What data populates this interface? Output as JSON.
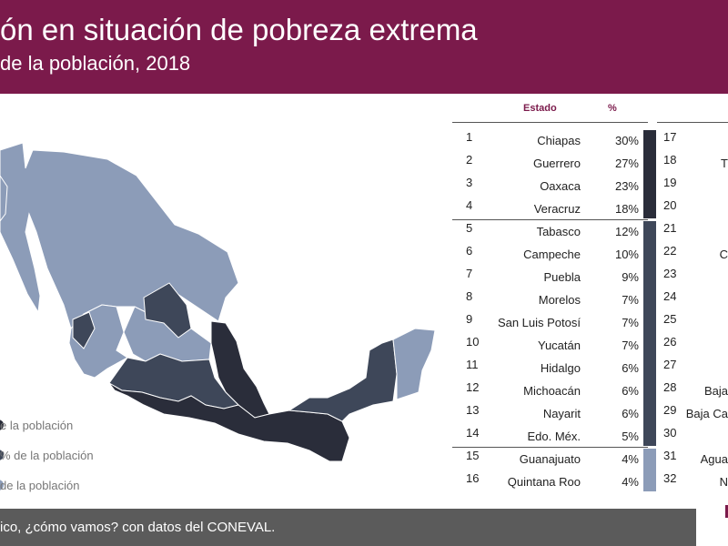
{
  "header": {
    "title": "ón en situación de pobreza extrema",
    "subtitle": "de la población, 2018"
  },
  "table": {
    "col_state": "Estado",
    "col_pct": "%",
    "rows": [
      {
        "rank": "1",
        "state": "Chiapas",
        "pct": "30%",
        "value": 30
      },
      {
        "rank": "2",
        "state": "Guerrero",
        "pct": "27%",
        "value": 27
      },
      {
        "rank": "3",
        "state": "Oaxaca",
        "pct": "23%",
        "value": 23
      },
      {
        "rank": "4",
        "state": "Veracruz",
        "pct": "18%",
        "value": 18
      },
      {
        "rank": "5",
        "state": "Tabasco",
        "pct": "12%",
        "value": 12
      },
      {
        "rank": "6",
        "state": "Campeche",
        "pct": "10%",
        "value": 10
      },
      {
        "rank": "7",
        "state": "Puebla",
        "pct": "9%",
        "value": 9
      },
      {
        "rank": "8",
        "state": "Morelos",
        "pct": "7%",
        "value": 7
      },
      {
        "rank": "9",
        "state": "San Luis Potosí",
        "pct": "7%",
        "value": 7
      },
      {
        "rank": "10",
        "state": "Yucatán",
        "pct": "7%",
        "value": 7
      },
      {
        "rank": "11",
        "state": "Hidalgo",
        "pct": "6%",
        "value": 6
      },
      {
        "rank": "12",
        "state": "Michoacán",
        "pct": "6%",
        "value": 6
      },
      {
        "rank": "13",
        "state": "Nayarit",
        "pct": "6%",
        "value": 6
      },
      {
        "rank": "14",
        "state": "Edo. Méx.",
        "pct": "5%",
        "value": 5
      },
      {
        "rank": "15",
        "state": "Guanajuato",
        "pct": "4%",
        "value": 4
      },
      {
        "rank": "16",
        "state": "Quintana Roo",
        "pct": "4%",
        "value": 4
      }
    ],
    "ranks_right": [
      "17",
      "18",
      "19",
      "20",
      "21",
      "22",
      "23",
      "24",
      "25",
      "26",
      "27",
      "28",
      "29",
      "30",
      "31",
      "32"
    ],
    "right_partial": [
      {
        "text": "T",
        "row": 1
      },
      {
        "text": "C",
        "row": 5
      },
      {
        "text": "Baja",
        "row": 11
      },
      {
        "text": "Baja Ca",
        "row": 12
      },
      {
        "text": "Agua",
        "row": 14
      },
      {
        "text": "N",
        "row": 15
      }
    ]
  },
  "legend": [
    {
      "label": "e la población",
      "color": "#2a2d3a"
    },
    {
      "label": "% de la población",
      "color": "#3e4759"
    },
    {
      "label": "de la población",
      "color": "#8c9cb8"
    }
  ],
  "footer": {
    "text": "ico, ¿cómo vamos? con datos del CONEVAL."
  },
  "colors": {
    "header_bg": "#7b1a4b",
    "tier1": "#2a2d3a",
    "tier2": "#3e4759",
    "tier3": "#8c9cb8",
    "footer_bg": "#5b5b5b"
  }
}
